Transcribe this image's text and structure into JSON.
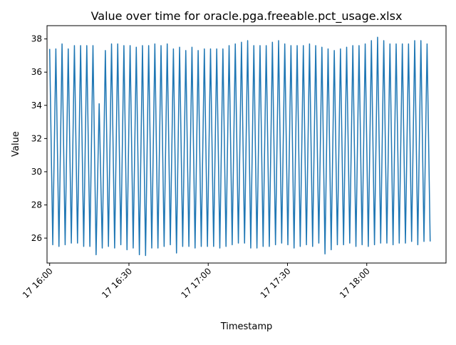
{
  "chart_data": {
    "type": "line",
    "title": "Value over time for oracle.pga.freeable.pct_usage.xlsx",
    "xlabel": "Timestamp",
    "ylabel": "Value",
    "x_start": "17 16:00",
    "x_end": "17 18:24",
    "xlim": [
      "17 15:59",
      "17 18:30"
    ],
    "ylim": [
      24.5,
      38.8
    ],
    "x_ticks": [
      "17 16:00",
      "17 16:30",
      "17 17:00",
      "17 17:30",
      "17 18:00"
    ],
    "y_ticks": [
      26,
      28,
      30,
      32,
      34,
      36,
      38
    ],
    "grid": false,
    "series_color": "#1f77b4",
    "series": [
      {
        "values": [
          37.4,
          25.6,
          37.4,
          25.5,
          37.7,
          25.6,
          37.4,
          25.7,
          37.6,
          25.7,
          37.6,
          25.5,
          37.6,
          25.5,
          37.6,
          25.0,
          34.1,
          25.4,
          37.3,
          25.5,
          37.7,
          25.4,
          37.7,
          25.6,
          37.6,
          25.3,
          37.6,
          25.4,
          37.5,
          25.0,
          37.6,
          24.95,
          37.6,
          25.4,
          37.7,
          25.4,
          37.6,
          25.5,
          37.7,
          25.6,
          37.4,
          25.1,
          37.5,
          25.5,
          37.3,
          25.5,
          37.5,
          25.4,
          37.3,
          25.5,
          37.4,
          25.5,
          37.4,
          25.5,
          37.4,
          25.4,
          37.4,
          25.5,
          37.6,
          25.6,
          37.7,
          25.7,
          37.8,
          25.7,
          37.9,
          25.4,
          37.6,
          25.4,
          37.6,
          25.5,
          37.6,
          25.5,
          37.8,
          25.6,
          37.9,
          25.7,
          37.7,
          25.6,
          37.6,
          25.4,
          37.6,
          25.5,
          37.6,
          25.6,
          37.7,
          25.5,
          37.6,
          25.7,
          37.5,
          25.05,
          37.4,
          25.3,
          37.3,
          25.6,
          37.4,
          25.6,
          37.5,
          25.7,
          37.6,
          25.5,
          37.6,
          25.6,
          37.7,
          25.5,
          37.9,
          25.6,
          38.1,
          25.7,
          37.9,
          25.7,
          37.7,
          25.6,
          37.7,
          25.7,
          37.7,
          25.7,
          37.7,
          25.8,
          37.9,
          25.6,
          37.9,
          25.8,
          37.7,
          25.8
        ]
      }
    ]
  }
}
